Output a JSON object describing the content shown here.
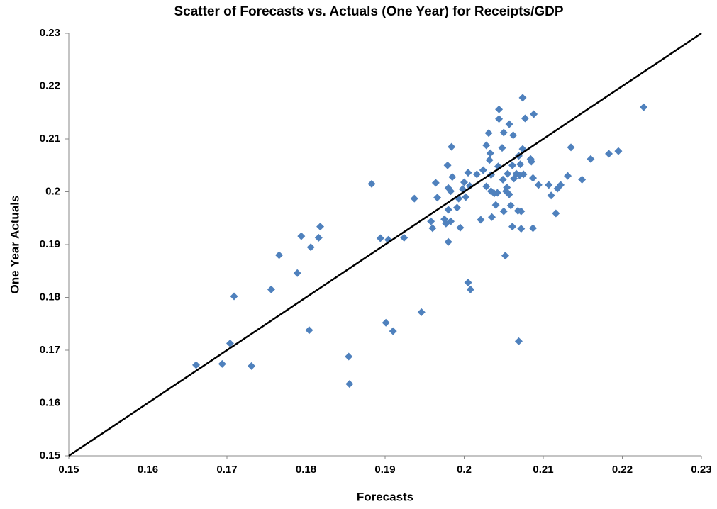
{
  "chart_data": {
    "type": "scatter",
    "title": "Scatter of Forecasts vs. Actuals (One Year) for Receipts/GDP",
    "xlabel": "Forecasts",
    "ylabel": "One Year Actuals",
    "color": "#4f81bd",
    "grid": false,
    "xlim": [
      0.15,
      0.23
    ],
    "ylim": [
      0.15,
      0.23
    ],
    "xticks": [
      0.15,
      0.16,
      0.17,
      0.18,
      0.19,
      0.2,
      0.21,
      0.22,
      0.23
    ],
    "yticks": [
      0.15,
      0.16,
      0.17,
      0.18,
      0.19,
      0.2,
      0.21,
      0.22,
      0.23
    ],
    "x": [
      0.1661,
      0.1694,
      0.1704,
      0.1709,
      0.1731,
      0.1756,
      0.1766,
      0.1789,
      0.1794,
      0.1804,
      0.1806,
      0.1816,
      0.1818,
      0.1854,
      0.1855,
      0.1883,
      0.1894,
      0.1901,
      0.1904,
      0.191,
      0.1924,
      0.1937,
      0.1946,
      0.1958,
      0.196,
      0.1964,
      0.1966,
      0.1975,
      0.1977,
      0.1979,
      0.198,
      0.198,
      0.198,
      0.1983,
      0.1983,
      0.1984,
      0.1985,
      0.1991,
      0.1993,
      0.1995,
      0.1998,
      0.2,
      0.2002,
      0.2005,
      0.2005,
      0.2007,
      0.2008,
      0.2016,
      0.2021,
      0.2024,
      0.2028,
      0.2028,
      0.2031,
      0.2032,
      0.2033,
      0.2034,
      0.2034,
      0.2035,
      0.2038,
      0.204,
      0.2042,
      0.2043,
      0.2044,
      0.2044,
      0.2048,
      0.2049,
      0.205,
      0.205,
      0.2052,
      0.2053,
      0.2054,
      0.2055,
      0.2057,
      0.2057,
      0.2059,
      0.2061,
      0.2061,
      0.2062,
      0.2063,
      0.2066,
      0.2068,
      0.2069,
      0.2069,
      0.207,
      0.2071,
      0.2072,
      0.2072,
      0.2074,
      0.2075,
      0.2074,
      0.2077,
      0.2084,
      0.2085,
      0.2087,
      0.2087,
      0.2088,
      0.2094,
      0.2107,
      0.211,
      0.2116,
      0.2118,
      0.2122,
      0.2131,
      0.2135,
      0.2149,
      0.216,
      0.2183,
      0.2195,
      0.2227
    ],
    "values": [
      0.1672,
      0.1674,
      0.1713,
      0.1802,
      0.167,
      0.1815,
      0.188,
      0.1846,
      0.1916,
      0.1738,
      0.1895,
      0.1913,
      0.1934,
      0.1688,
      0.1636,
      0.2015,
      0.1912,
      0.1752,
      0.1909,
      0.1736,
      0.1913,
      0.1987,
      0.1772,
      0.1944,
      0.1931,
      0.2017,
      0.1989,
      0.1948,
      0.194,
      0.205,
      0.2007,
      0.1966,
      0.1905,
      0.1944,
      0.2001,
      0.2085,
      0.2028,
      0.197,
      0.1987,
      0.1932,
      0.2005,
      0.2018,
      0.199,
      0.2036,
      0.1828,
      0.2011,
      0.1815,
      0.2033,
      0.1947,
      0.2041,
      0.201,
      0.2088,
      0.2111,
      0.206,
      0.2073,
      0.2001,
      0.2032,
      0.1952,
      0.1997,
      0.1975,
      0.1998,
      0.2048,
      0.2138,
      0.2156,
      0.2083,
      0.2023,
      0.1963,
      0.2112,
      0.1879,
      0.2001,
      0.2008,
      0.2034,
      0.2128,
      0.1995,
      0.1974,
      0.1934,
      0.205,
      0.2107,
      0.2025,
      0.2034,
      0.1964,
      0.2068,
      0.1717,
      0.2031,
      0.2052,
      0.1963,
      0.193,
      0.2081,
      0.2033,
      0.2178,
      0.2139,
      0.2062,
      0.2057,
      0.1931,
      0.2026,
      0.2147,
      0.2013,
      0.2013,
      0.1993,
      0.1959,
      0.2006,
      0.2013,
      0.203,
      0.2084,
      0.2023,
      0.2062,
      0.2072,
      0.2077,
      0.216
    ]
  }
}
